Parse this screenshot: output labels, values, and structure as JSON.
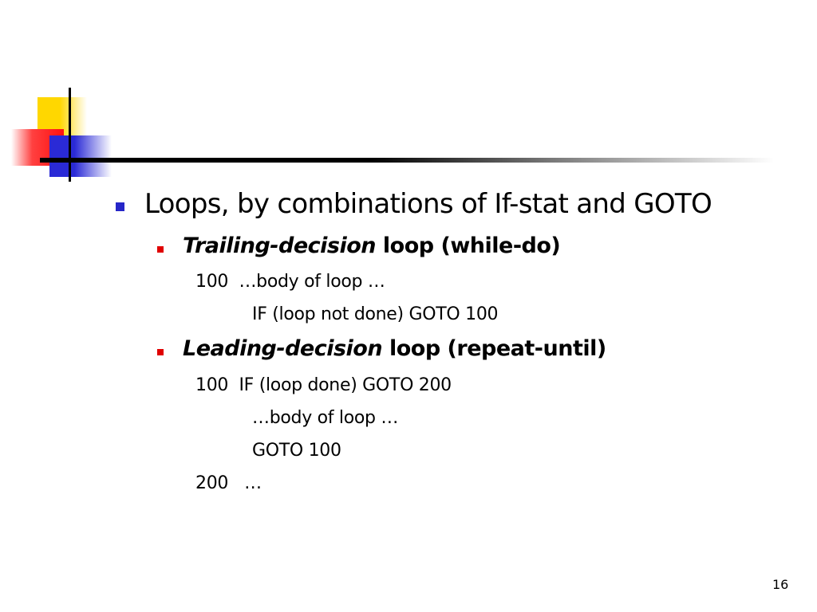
{
  "slide": {
    "page_number": "16",
    "bullet": "Loops, by combinations of If-stat and GOTO",
    "subitems": [
      {
        "emph": "Trailing-decision",
        "rest": " loop (while-do)",
        "code": [
          "100  …body of loop …",
          "IF (loop not done) GOTO 100"
        ]
      },
      {
        "emph": "Leading-decision",
        "rest": " loop (repeat-until)",
        "code": [
          "100  IF (loop done) GOTO 200",
          "…body of loop …",
          "GOTO 100",
          "200   …"
        ]
      }
    ]
  },
  "colors": {
    "bullet_level1": "#2626c8",
    "bullet_level2": "#e00000",
    "logo_yellow": "#ffd700",
    "logo_red": "#ff2020",
    "logo_blue": "#2a2ad6"
  }
}
